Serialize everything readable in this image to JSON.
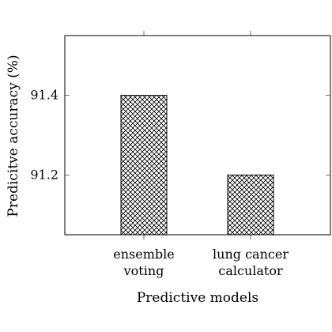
{
  "chart_data": {
    "type": "bar",
    "title": "",
    "xlabel": "Predictive models",
    "ylabel": "Predicitve accuracy (%)",
    "categories": [
      [
        "ensemble",
        "voting"
      ],
      [
        "lung cancer",
        "calculator"
      ]
    ],
    "values": [
      91.4,
      91.2
    ],
    "ylim": [
      91.05,
      91.55
    ],
    "yticks": [
      91.2,
      91.4
    ],
    "ytick_labels": [
      "91.2",
      "91.4"
    ],
    "bar_pattern": "crosshatch",
    "grid": false,
    "legend": "none"
  }
}
